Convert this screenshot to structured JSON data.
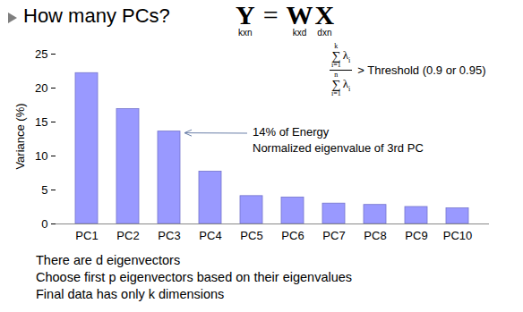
{
  "chart_data": {
    "type": "bar",
    "title": "How many PCs?",
    "categories": [
      "PC1",
      "PC2",
      "PC3",
      "PC4",
      "PC5",
      "PC6",
      "PC7",
      "PC8",
      "PC9",
      "PC10"
    ],
    "values": [
      22.2,
      16.9,
      13.6,
      7.7,
      4.1,
      3.9,
      3.0,
      2.8,
      2.5,
      2.3
    ],
    "color": "#9999ff",
    "ylim": [
      0,
      25
    ],
    "yticks": [
      0,
      5,
      10,
      15,
      20,
      25
    ],
    "y_label": "Variance (%)",
    "annotation": {
      "lines": [
        "14% of Energy",
        "Normalized eigenvalue of 3rd PC"
      ],
      "target": "PC3"
    }
  },
  "formula": {
    "lhs": "Y",
    "lhs_sub": "kxn",
    "equals": "=",
    "rhs": [
      "W",
      "X"
    ],
    "rhs_subs": [
      "kxd",
      "dxn"
    ]
  },
  "criterion": {
    "sum": "∑",
    "lower": "i=1",
    "upper_numerator": "k",
    "upper_denominator": "n",
    "term": "λ",
    "term_sub": "i",
    "condition": "> Threshold (0.9 or 0.95)"
  },
  "notes": [
    "There are d eigenvectors",
    "Choose first p eigenvectors based on their eigenvalues",
    "Final data has only k dimensions"
  ]
}
